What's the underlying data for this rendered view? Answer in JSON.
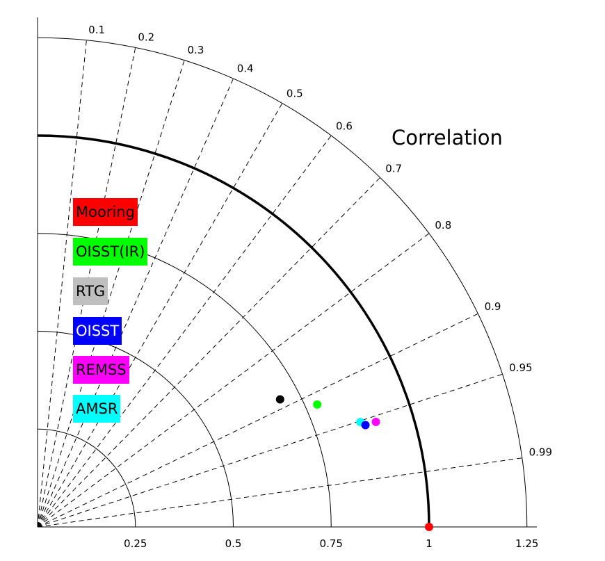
{
  "chart_data": {
    "type": "taylor-diagram",
    "title": "Correlation",
    "std_ticks": [
      "0.25",
      "0.5",
      "0.75",
      "1",
      "1.25"
    ],
    "std_values": [
      0.25,
      0.5,
      0.75,
      1,
      1.25
    ],
    "std_range": [
      0,
      1.25
    ],
    "reference_std": 1,
    "correlation_ticks": [
      "0.1",
      "0.2",
      "0.3",
      "0.4",
      "0.5",
      "0.6",
      "0.7",
      "0.8",
      "0.9",
      "0.95",
      "0.99"
    ],
    "correlation_values": [
      0.1,
      0.2,
      0.3,
      0.4,
      0.5,
      0.6,
      0.7,
      0.8,
      0.9,
      0.95,
      0.99
    ],
    "legend": [
      {
        "label": "Mooring",
        "color": "#ff0000",
        "text_color": "#000000"
      },
      {
        "label": "OISST(IR)",
        "color": "#00ff00",
        "text_color": "#000000"
      },
      {
        "label": "RTG",
        "color": "#bfbfbf",
        "text_color": "#000000"
      },
      {
        "label": "OISST",
        "color": "#0000ff",
        "text_color": "#ffffff"
      },
      {
        "label": "REMSS",
        "color": "#ff00ff",
        "text_color": "#000000"
      },
      {
        "label": "AMSR",
        "color": "#00ffff",
        "text_color": "#000000"
      }
    ],
    "legend_placement": "left",
    "points": [
      {
        "series": "RTG",
        "std": 0.7,
        "corr": 0.885,
        "color": "#000000"
      },
      {
        "series": "OISST(IR)",
        "std": 0.78,
        "corr": 0.916,
        "color": "#00ff00"
      },
      {
        "series": "AMSR",
        "std": 0.867,
        "corr": 0.951,
        "color": "#00ffff"
      },
      {
        "series": "OISST",
        "std": 0.877,
        "corr": 0.955,
        "color": "#0000ff"
      },
      {
        "series": "REMSS",
        "std": 0.905,
        "corr": 0.955,
        "color": "#ff00ff"
      },
      {
        "series": "Mooring",
        "std": 1.0,
        "corr": 1.0,
        "color": "#ff0000"
      }
    ]
  }
}
